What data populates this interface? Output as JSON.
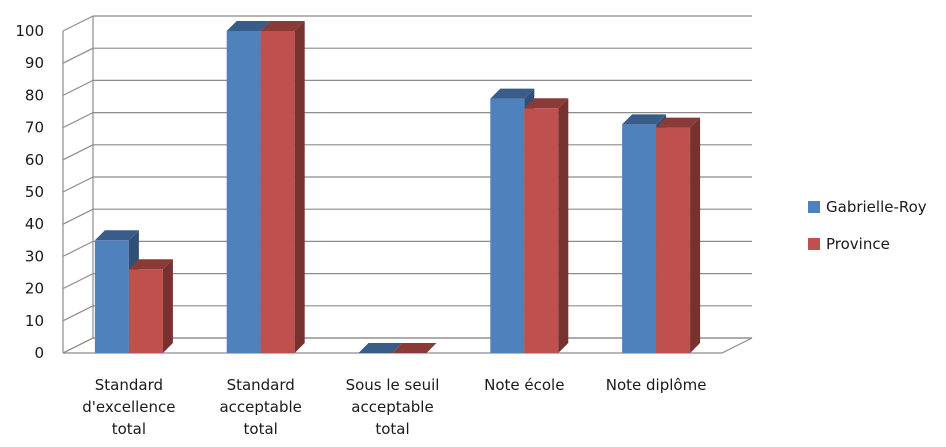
{
  "chart_data": {
    "type": "bar",
    "title": "",
    "xlabel": "",
    "ylabel": "",
    "categories": [
      [
        "Standard",
        "d'excellence",
        "total"
      ],
      [
        "Standard",
        "acceptable",
        "total"
      ],
      [
        "Sous le seuil",
        "acceptable",
        "total"
      ],
      [
        "Note école"
      ],
      [
        "Note diplôme"
      ]
    ],
    "series": [
      {
        "name": "Gabrielle-Roy",
        "color": "#4F81BD",
        "values": [
          35,
          100,
          0,
          79,
          71
        ]
      },
      {
        "name": "Province",
        "color": "#C0504D",
        "values": [
          26,
          100,
          0,
          76,
          70
        ]
      }
    ],
    "ylim": [
      0,
      100
    ],
    "yticks": [
      "0",
      "10",
      "20",
      "30",
      "40",
      "50",
      "60",
      "70",
      "80",
      "90",
      "100"
    ],
    "grid": true,
    "legend": "right",
    "style": "3d-clustered-column"
  }
}
